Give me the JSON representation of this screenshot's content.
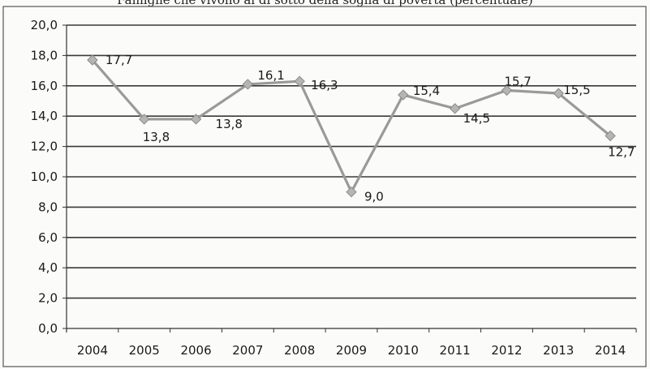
{
  "chart_data": {
    "type": "line",
    "title": "Famiglie che vivono al di sotto della soglia di povertà (percentuale)",
    "xlabel": "",
    "ylabel": "",
    "categories": [
      "2004",
      "2005",
      "2006",
      "2007",
      "2008",
      "2009",
      "2010",
      "2011",
      "2012",
      "2013",
      "2014"
    ],
    "series": [
      {
        "values": [
          17.7,
          13.8,
          13.8,
          16.1,
          16.3,
          9.0,
          15.4,
          14.5,
          15.7,
          15.5,
          12.7
        ],
        "data_labels": [
          "17,7",
          "13,8",
          "13,8",
          "16,1",
          "16,3",
          "9,0",
          "15,4",
          "14,5",
          "15,7",
          "15,5",
          "12,7"
        ],
        "color": "#9a9a9a",
        "marker": "diamond"
      }
    ],
    "ylim": [
      0,
      20
    ],
    "yticks": [
      0,
      2,
      4,
      6,
      8,
      10,
      12,
      14,
      16,
      18,
      20
    ],
    "ytick_labels": [
      "0,0",
      "2,0",
      "4,0",
      "6,0",
      "8,0",
      "10,0",
      "12,0",
      "14,0",
      "16,0",
      "18,0",
      "20,0"
    ],
    "grid": true,
    "legend": "none"
  }
}
